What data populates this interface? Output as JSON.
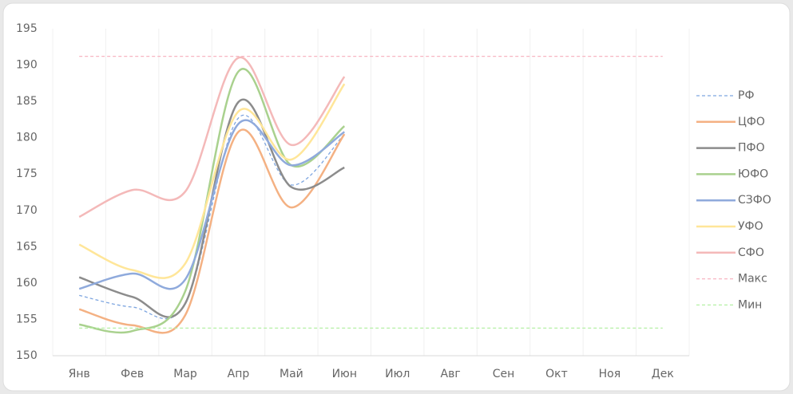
{
  "chart_data": {
    "type": "line",
    "categories": [
      "Янв",
      "Фев",
      "Мар",
      "Апр",
      "Май",
      "Июн",
      "Июл",
      "Авг",
      "Сен",
      "Окт",
      "Ноя",
      "Дек"
    ],
    "ylim": [
      150,
      195
    ],
    "yticks": [
      150,
      155,
      160,
      165,
      170,
      175,
      180,
      185,
      190,
      195
    ],
    "legend": "right",
    "series": [
      {
        "name": "РФ",
        "color": "#7ea6e0",
        "dashed": true,
        "values": [
          158.3,
          156.7,
          157.2,
          182.7,
          173.5,
          180.5,
          null,
          null,
          null,
          null,
          null,
          null
        ]
      },
      {
        "name": "ЦФО",
        "color": "#f4b183",
        "dashed": false,
        "values": [
          156.4,
          154.2,
          155.6,
          180.8,
          170.4,
          180.5,
          null,
          null,
          null,
          null,
          null,
          null
        ]
      },
      {
        "name": "ПФО",
        "color": "#8c8c8c",
        "dashed": false,
        "values": [
          160.8,
          158.1,
          157.2,
          184.9,
          173.2,
          175.9,
          null,
          null,
          null,
          null,
          null,
          null
        ]
      },
      {
        "name": "ЮФО",
        "color": "#a9d18e",
        "dashed": false,
        "values": [
          154.3,
          153.4,
          158.9,
          189.1,
          176.2,
          181.6,
          null,
          null,
          null,
          null,
          null,
          null
        ]
      },
      {
        "name": "СЗФО",
        "color": "#8faadc",
        "dashed": false,
        "values": [
          159.2,
          161.3,
          160.5,
          181.9,
          176.2,
          180.8,
          null,
          null,
          null,
          null,
          null,
          null
        ]
      },
      {
        "name": "УФО",
        "color": "#ffe699",
        "dashed": false,
        "values": [
          165.3,
          161.8,
          162.7,
          183.6,
          177.0,
          187.4,
          null,
          null,
          null,
          null,
          null,
          null
        ]
      },
      {
        "name": "СФО",
        "color": "#f4b9b9",
        "dashed": false,
        "values": [
          169.1,
          172.8,
          172.6,
          191.0,
          179.0,
          188.4,
          null,
          null,
          null,
          null,
          null,
          null
        ]
      },
      {
        "name": "Макс",
        "color": "#f7b6c2",
        "dashed": true,
        "values": [
          191.2,
          191.2,
          191.2,
          191.2,
          191.2,
          191.2,
          191.2,
          191.2,
          191.2,
          191.2,
          191.2,
          191.2
        ]
      },
      {
        "name": "Мин",
        "color": "#b5f0a5",
        "dashed": true,
        "values": [
          153.8,
          153.8,
          153.8,
          153.8,
          153.8,
          153.8,
          153.8,
          153.8,
          153.8,
          153.8,
          153.8,
          153.8
        ]
      }
    ]
  }
}
